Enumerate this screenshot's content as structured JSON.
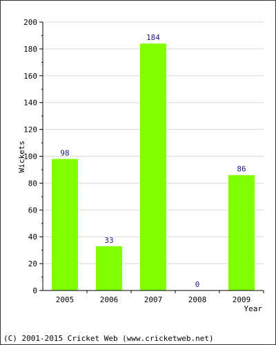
{
  "chart_data": {
    "type": "bar",
    "categories": [
      "2005",
      "2006",
      "2007",
      "2008",
      "2009"
    ],
    "values": [
      98,
      33,
      184,
      0,
      86
    ],
    "data_labels": [
      "98",
      "33",
      "184",
      "0",
      "86"
    ],
    "title": "",
    "xlabel": "Year",
    "ylabel": "Wickets",
    "ylim": [
      0,
      200
    ],
    "yticks": [
      "0",
      "20",
      "40",
      "60",
      "80",
      "100",
      "120",
      "140",
      "160",
      "180",
      "200"
    ],
    "grid": true,
    "legend": "none"
  },
  "colors": {
    "bar": "#80ff00",
    "grid": "#d8d8d8",
    "data_label": "#1a1a80",
    "axis": "#000000"
  },
  "footer": {
    "copyright": "(C) 2001-2015 Cricket Web (www.cricketweb.net)"
  }
}
